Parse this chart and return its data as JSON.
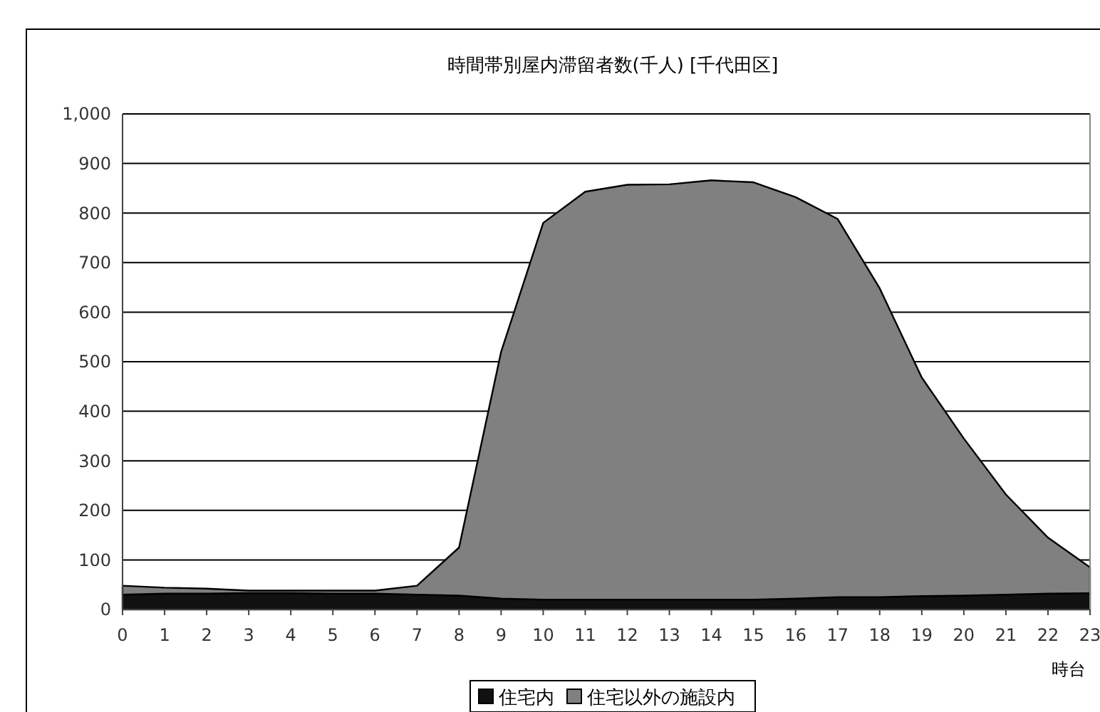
{
  "chart_data": {
    "type": "area",
    "title": "時間帯別屋内滞留者数(千人) [千代田区]",
    "xlabel": "時台",
    "stacked": true,
    "x": [
      0,
      1,
      2,
      3,
      4,
      5,
      6,
      7,
      8,
      9,
      10,
      11,
      12,
      13,
      14,
      15,
      16,
      17,
      18,
      19,
      20,
      21,
      22,
      23
    ],
    "series": [
      {
        "name": "住宅内",
        "color": "#111111",
        "values": [
          30,
          32,
          32,
          33,
          33,
          32,
          32,
          30,
          28,
          22,
          20,
          20,
          20,
          20,
          20,
          20,
          22,
          25,
          25,
          27,
          28,
          30,
          32,
          33
        ]
      },
      {
        "name": "住宅以外の施設内",
        "color": "#808080",
        "values": [
          18,
          12,
          10,
          5,
          5,
          6,
          6,
          18,
          97,
          498,
          760,
          823,
          837,
          838,
          846,
          842,
          810,
          763,
          623,
          441,
          317,
          202,
          113,
          52
        ]
      }
    ],
    "xlim": [
      0,
      23
    ],
    "xticks": [
      0,
      1,
      2,
      3,
      4,
      5,
      6,
      7,
      8,
      9,
      10,
      11,
      12,
      13,
      14,
      15,
      16,
      17,
      18,
      19,
      20,
      21,
      22,
      23
    ],
    "ylim": [
      0,
      1000
    ],
    "yticks": [
      0,
      100,
      200,
      300,
      400,
      500,
      600,
      700,
      800,
      900,
      {
        "value": 1000,
        "label": "1,000"
      }
    ],
    "grid": "y",
    "legend": "bottom"
  }
}
